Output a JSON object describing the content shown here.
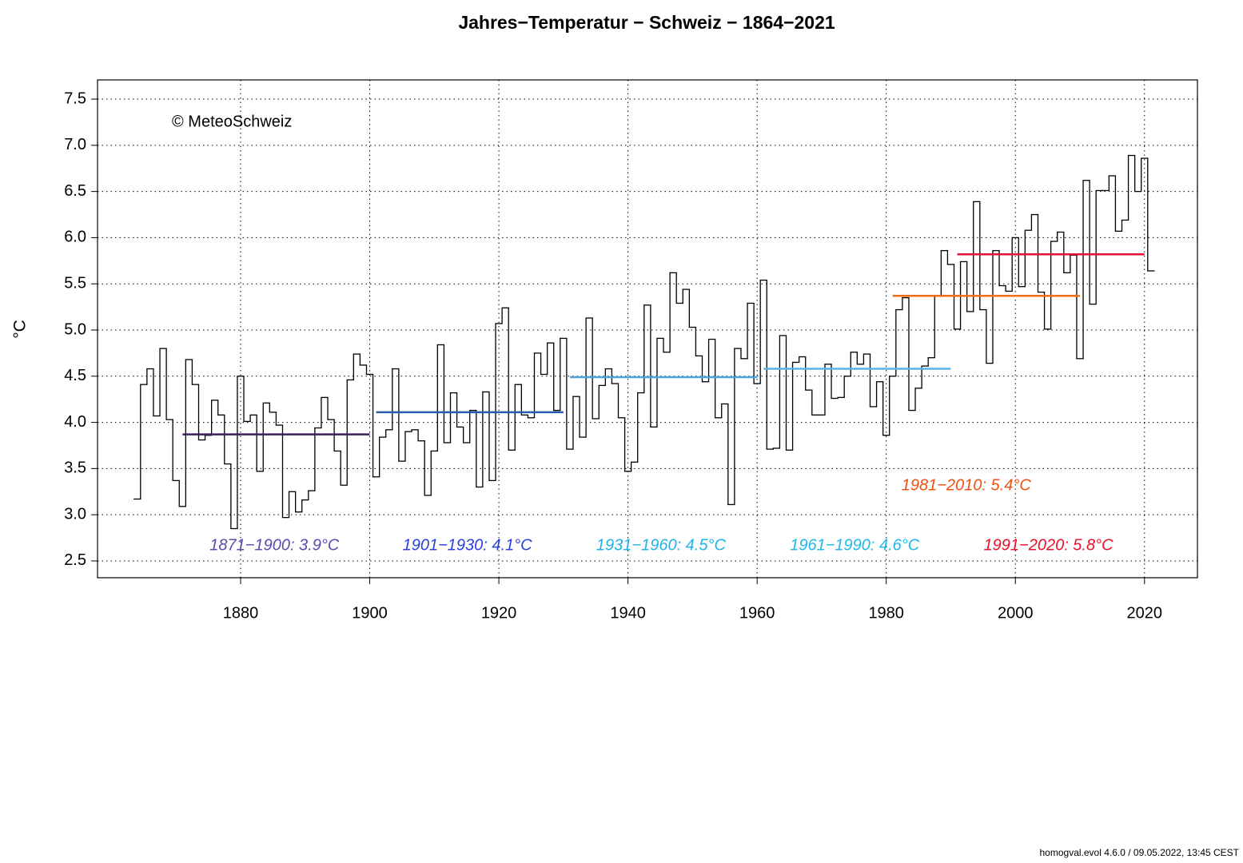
{
  "chart_data": {
    "type": "step",
    "title": "Jahres−Temperatur − Schweiz − 1864−2021",
    "y_label": "°C",
    "annotation": "© MeteoSchweiz",
    "footer": "homogval.evol 4.6.0 / 09.05.2022, 13:45 CEST",
    "x": [
      1864,
      1865,
      1866,
      1867,
      1868,
      1869,
      1870,
      1871,
      1872,
      1873,
      1874,
      1875,
      1876,
      1877,
      1878,
      1879,
      1880,
      1881,
      1882,
      1883,
      1884,
      1885,
      1886,
      1887,
      1888,
      1889,
      1890,
      1891,
      1892,
      1893,
      1894,
      1895,
      1896,
      1897,
      1898,
      1899,
      1900,
      1901,
      1902,
      1903,
      1904,
      1905,
      1906,
      1907,
      1908,
      1909,
      1910,
      1911,
      1912,
      1913,
      1914,
      1915,
      1916,
      1917,
      1918,
      1919,
      1920,
      1921,
      1922,
      1923,
      1924,
      1925,
      1926,
      1927,
      1928,
      1929,
      1930,
      1931,
      1932,
      1933,
      1934,
      1935,
      1936,
      1937,
      1938,
      1939,
      1940,
      1941,
      1942,
      1943,
      1944,
      1945,
      1946,
      1947,
      1948,
      1949,
      1950,
      1951,
      1952,
      1953,
      1954,
      1955,
      1956,
      1957,
      1958,
      1959,
      1960,
      1961,
      1962,
      1963,
      1964,
      1965,
      1966,
      1967,
      1968,
      1969,
      1970,
      1971,
      1972,
      1973,
      1974,
      1975,
      1976,
      1977,
      1978,
      1979,
      1980,
      1981,
      1982,
      1983,
      1984,
      1985,
      1986,
      1987,
      1988,
      1989,
      1990,
      1991,
      1992,
      1993,
      1994,
      1995,
      1996,
      1997,
      1998,
      1999,
      2000,
      2001,
      2002,
      2003,
      2004,
      2005,
      2006,
      2007,
      2008,
      2009,
      2010,
      2011,
      2012,
      2013,
      2014,
      2015,
      2016,
      2017,
      2018,
      2019,
      2020,
      2021
    ],
    "values": [
      3.17,
      4.41,
      4.58,
      4.07,
      4.8,
      4.03,
      3.37,
      3.09,
      4.68,
      4.41,
      3.81,
      3.86,
      4.24,
      4.08,
      3.55,
      2.85,
      4.5,
      4.01,
      4.08,
      3.47,
      4.21,
      4.11,
      3.97,
      2.97,
      3.25,
      3.03,
      3.16,
      3.26,
      3.94,
      4.27,
      4.03,
      3.69,
      3.32,
      4.46,
      4.74,
      4.62,
      4.52,
      3.41,
      3.84,
      3.92,
      4.58,
      3.58,
      3.9,
      3.92,
      3.8,
      3.21,
      3.69,
      4.84,
      3.78,
      4.32,
      3.95,
      3.78,
      4.13,
      3.3,
      4.33,
      3.37,
      5.07,
      5.24,
      3.7,
      4.41,
      4.08,
      4.05,
      4.75,
      4.52,
      4.86,
      4.13,
      4.91,
      3.71,
      4.28,
      3.84,
      5.13,
      4.04,
      4.4,
      4.58,
      4.42,
      4.05,
      3.47,
      3.57,
      4.32,
      5.27,
      3.95,
      4.91,
      4.76,
      5.62,
      5.29,
      5.44,
      5.03,
      4.72,
      4.44,
      4.9,
      4.05,
      4.2,
      3.11,
      4.8,
      4.69,
      5.29,
      4.42,
      5.54,
      3.71,
      3.72,
      4.94,
      3.7,
      4.65,
      4.71,
      4.35,
      4.08,
      4.08,
      4.63,
      4.26,
      4.27,
      4.5,
      4.76,
      4.63,
      4.74,
      4.17,
      4.44,
      3.86,
      4.5,
      5.22,
      5.35,
      4.13,
      4.37,
      4.61,
      4.7,
      5.37,
      5.86,
      5.71,
      5.01,
      5.74,
      5.2,
      6.39,
      5.22,
      4.64,
      5.86,
      5.48,
      5.42,
      6.0,
      5.47,
      6.08,
      6.25,
      5.41,
      5.01,
      5.96,
      6.06,
      5.62,
      5.81,
      4.69,
      6.62,
      5.28,
      6.51,
      6.51,
      6.67,
      6.07,
      6.19,
      6.89,
      6.5,
      6.86,
      5.64
    ],
    "color": "#000000",
    "normals": [
      {
        "label": "1871−1900: 3.9°C",
        "start": 1871,
        "end": 1900,
        "value": 3.87,
        "color": "#3b1f5e",
        "label_color": "#5a4cae"
      },
      {
        "label": "1901−1930: 4.1°C",
        "start": 1901,
        "end": 1930,
        "value": 4.11,
        "color": "#2b5ba8",
        "label_color": "#2a3fe0"
      },
      {
        "label": "1931−1960: 4.5°C",
        "start": 1931,
        "end": 1960,
        "value": 4.49,
        "color": "#4ba3e0",
        "label_color": "#1fb2ea"
      },
      {
        "label": "1961−1990: 4.6°C",
        "start": 1961,
        "end": 1990,
        "value": 4.58,
        "color": "#5ab2ea",
        "label_color": "#1fb8ea"
      },
      {
        "label": "1981−2010: 5.4°C",
        "start": 1981,
        "end": 2010,
        "value": 5.37,
        "color": "#f07010",
        "label_color": "#f0500f"
      },
      {
        "label": "1991−2020: 5.8°C",
        "start": 1991,
        "end": 2020,
        "value": 5.82,
        "color": "#e3103c",
        "label_color": "#e8102a"
      }
    ],
    "xlim": [
      1857.84,
      2028.2
    ],
    "xticks": [
      1880,
      1900,
      1920,
      1940,
      1960,
      1980,
      2000,
      2020
    ],
    "ylim": [
      2.318,
      7.708
    ],
    "yticks": [
      2.5,
      {
        "value": 3,
        "label": "3.0"
      },
      3.5,
      {
        "value": 4,
        "label": "4.0"
      },
      4.5,
      {
        "value": 5,
        "label": "5.0"
      },
      5.5,
      {
        "value": 6,
        "label": "6.0"
      },
      6.5,
      {
        "value": 7,
        "label": "7.0"
      },
      7.5
    ],
    "grid": true
  }
}
